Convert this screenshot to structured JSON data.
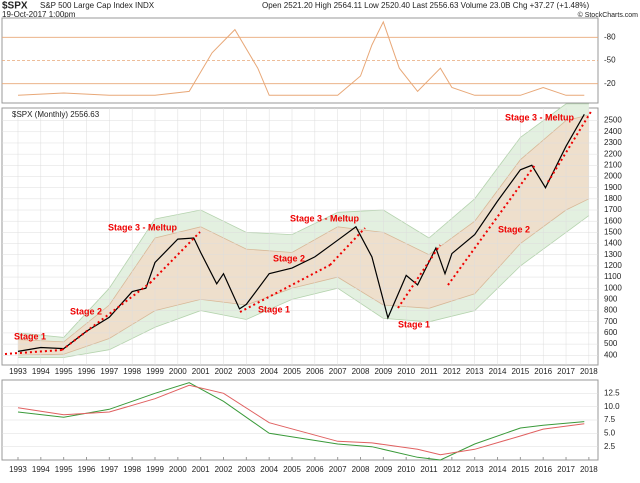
{
  "header": {
    "symbol": "$SPX",
    "name": "S&P 500 Large Cap Index INDX",
    "date": "19-Oct-2017 1:00pm",
    "quote": "Open 2521.20  High 2564.11  Low 2520.40  Last 2556.63  Volume 23.0B  Chg +37.27 (+1.48%)",
    "credit": "© StockCharts.com"
  },
  "chart_data": [
    {
      "type": "line",
      "color": "#e8a878",
      "xlim": [
        1992.3,
        2018.4
      ],
      "ylim": [
        5,
        -105
      ],
      "yticks": [
        -20,
        -50,
        -80
      ],
      "x": [
        1993,
        1995,
        1997,
        1999,
        2000.5,
        2001.5,
        2002.5,
        2003.5,
        2004,
        2007,
        2008,
        2008.5,
        2009,
        2009.7,
        2010.5,
        2011.5,
        2012,
        2013,
        2015,
        2016,
        2017,
        2017.8
      ],
      "values": [
        -5,
        -8,
        -5,
        -5,
        -10,
        -60,
        -90,
        -40,
        -5,
        -5,
        -30,
        -70,
        -100,
        -40,
        -10,
        -40,
        -15,
        -5,
        -5,
        -15,
        -5,
        -5
      ]
    },
    {
      "type": "line",
      "title": "$SPX (Monthly) 2556.63",
      "color": "#000000",
      "xlim": [
        1992.3,
        2018.4
      ],
      "ylim": [
        313,
        2613
      ],
      "yticks": [
        400,
        500,
        600,
        700,
        800,
        900,
        1000,
        1100,
        1200,
        1300,
        1400,
        1500,
        1600,
        1700,
        1800,
        1900,
        2000,
        2100,
        2200,
        2300,
        2400,
        2500
      ],
      "xticks": [
        1993,
        1994,
        1995,
        1996,
        1997,
        1998,
        1999,
        2000,
        2001,
        2002,
        2003,
        2004,
        2005,
        2006,
        2007,
        2008,
        2009,
        2010,
        2011,
        2012,
        2013,
        2014,
        2015,
        2016,
        2017,
        2018
      ],
      "grid": true,
      "x": [
        1993.0,
        1994.0,
        1995.0,
        1996.0,
        1997.0,
        1998.0,
        1998.6,
        1999.0,
        2000.0,
        2000.7,
        2001.0,
        2001.7,
        2002.0,
        2002.7,
        2003.0,
        2004.0,
        2005.0,
        2006.0,
        2007.0,
        2007.8,
        2008.5,
        2009.2,
        2010.0,
        2010.5,
        2011.3,
        2011.7,
        2012.0,
        2013.0,
        2014.0,
        2015.0,
        2015.5,
        2016.1,
        2017.0,
        2017.8
      ],
      "values": [
        435,
        470,
        460,
        615,
        740,
        970,
        1000,
        1230,
        1440,
        1450,
        1320,
        1040,
        1130,
        815,
        855,
        1130,
        1180,
        1280,
        1430,
        1550,
        1280,
        735,
        1115,
        1030,
        1360,
        1130,
        1310,
        1480,
        1780,
        2060,
        2100,
        1900,
        2270,
        2557
      ],
      "bands": {
        "x": [
          1993,
          1995,
          1997,
          1999,
          2001,
          2003,
          2005,
          2007,
          2009,
          2011,
          2013,
          2015,
          2017,
          2018
        ],
        "outer_upper": [
          600,
          560,
          1000,
          1620,
          1700,
          1500,
          1480,
          1680,
          1700,
          1450,
          1800,
          2350,
          2650,
          2650
        ],
        "outer_lower": [
          380,
          380,
          450,
          650,
          800,
          720,
          900,
          1000,
          730,
          700,
          800,
          1200,
          1500,
          1650
        ],
        "inner_upper": [
          540,
          520,
          850,
          1450,
          1550,
          1350,
          1320,
          1550,
          1500,
          1300,
          1600,
          2150,
          2500,
          2550
        ],
        "inner_lower": [
          400,
          410,
          550,
          800,
          900,
          850,
          1000,
          1100,
          850,
          820,
          950,
          1400,
          1700,
          1800
        ]
      },
      "annotations": [
        "Stage 1",
        "Stage 2",
        "Stage 3 - Meltup",
        "Stage 1",
        "Stage 2",
        "Stage 3 - Meltup",
        "Stage 1",
        "Stage 2",
        "Stage 3 - Meltup"
      ]
    },
    {
      "type": "line",
      "xlim": [
        1992.3,
        2018.4
      ],
      "ylim": [
        0,
        15
      ],
      "yticks": [
        2.5,
        {
          "value": 5,
          "label": "5.0"
        },
        7.5,
        {
          "value": 10,
          "label": "10.0"
        },
        12.5
      ],
      "xticks": [
        1993,
        1994,
        1995,
        1996,
        1997,
        1998,
        1999,
        2000,
        2001,
        2002,
        2003,
        2004,
        2005,
        2006,
        2007,
        2008,
        2009,
        2010,
        2011,
        2012,
        2013,
        2014,
        2015,
        2016,
        2017,
        2018
      ],
      "x": [
        1993,
        1995,
        1997,
        1999,
        2000.5,
        2002,
        2004,
        2007,
        2008.5,
        2010.5,
        2011.5,
        2013,
        2015,
        2016,
        2017.8
      ],
      "series": [
        {
          "color": "#3a9a3a",
          "values": [
            9,
            8,
            9.5,
            12.5,
            14.5,
            11,
            5,
            3,
            2.5,
            0.5,
            0,
            3,
            6,
            6.5,
            7.2
          ]
        },
        {
          "color": "#e06060",
          "values": [
            9.8,
            8.5,
            9,
            11.5,
            14,
            12.5,
            7,
            3.5,
            3.2,
            2,
            1,
            2,
            4.5,
            5.8,
            6.8
          ]
        }
      ]
    }
  ]
}
